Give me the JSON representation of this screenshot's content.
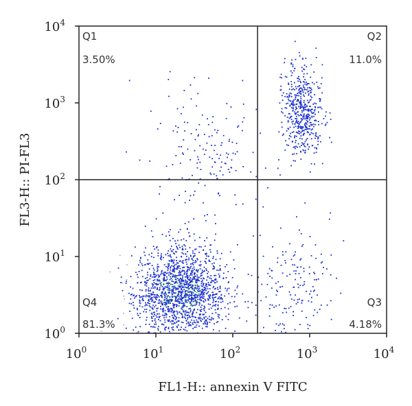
{
  "chart_data": {
    "type": "scatter",
    "x_scale": "log",
    "y_scale": "log",
    "xlim": [
      1,
      10000
    ],
    "ylim": [
      1,
      10000
    ],
    "xlabel": "FL1-H:: annexin V FITC",
    "ylabel": "FL3-H:: PI-FL3",
    "x_ticks": [
      {
        "base": "10",
        "exp": "0",
        "value": 1
      },
      {
        "base": "10",
        "exp": "1",
        "value": 10
      },
      {
        "base": "10",
        "exp": "2",
        "value": 100
      },
      {
        "base": "10",
        "exp": "3",
        "value": 1000
      },
      {
        "base": "10",
        "exp": "4",
        "value": 10000
      }
    ],
    "y_ticks": [
      {
        "base": "10",
        "exp": "0",
        "value": 1
      },
      {
        "base": "10",
        "exp": "1",
        "value": 10
      },
      {
        "base": "10",
        "exp": "2",
        "value": 100
      },
      {
        "base": "10",
        "exp": "3",
        "value": 1000
      },
      {
        "base": "10",
        "exp": "4",
        "value": 10000
      }
    ],
    "gates": {
      "x": 210,
      "y": 100
    },
    "quadrants": [
      {
        "id": "Q1",
        "name": "Q1",
        "percent": "3.50%",
        "position": "top-left"
      },
      {
        "id": "Q2",
        "name": "Q2",
        "percent": "11.0%",
        "position": "top-right"
      },
      {
        "id": "Q3",
        "name": "Q3",
        "percent": "4.18%",
        "position": "bottom-right"
      },
      {
        "id": "Q4",
        "name": "Q4",
        "percent": "81.3%",
        "position": "bottom-left"
      }
    ],
    "colors": {
      "dots": "#1a2fd0",
      "dense": "#3cc83c",
      "sparse": "#a9b0e8",
      "frame": "#222222"
    },
    "populations": [
      {
        "quadrant": "Q4",
        "center": [
          20,
          3.5
        ],
        "log_spread": [
          0.3,
          0.3
        ],
        "density": "high"
      },
      {
        "quadrant": "Q2",
        "center": [
          800,
          800
        ],
        "log_spread": [
          0.13,
          0.3
        ],
        "density": "medium"
      },
      {
        "quadrant": "Q1",
        "center": [
          40,
          200
        ],
        "log_spread": [
          0.35,
          0.4
        ],
        "density": "low"
      },
      {
        "quadrant": "Q3",
        "center": [
          600,
          4
        ],
        "log_spread": [
          0.25,
          0.4
        ],
        "density": "low"
      }
    ],
    "grid": false,
    "legend": "none"
  }
}
